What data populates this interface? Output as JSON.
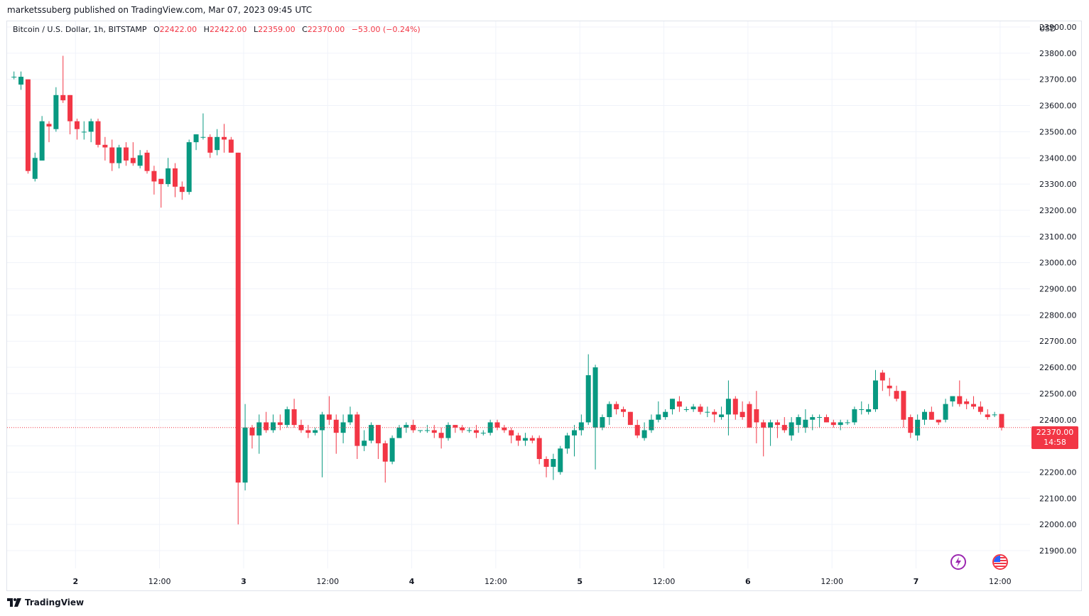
{
  "header": {
    "text": "marketssuberg published on TradingView.com, Mar 07, 2023 09:45 UTC"
  },
  "legend": {
    "symbol": "Bitcoin / U.S. Dollar, 1h, BITSTAMP",
    "o_label": "O",
    "o_value": "22422.00",
    "h_label": "H",
    "h_value": "22422.00",
    "l_label": "L",
    "l_value": "22359.00",
    "c_label": "C",
    "c_value": "22370.00",
    "change": "−53.00 (−0.24%)"
  },
  "price_tag": {
    "price": "22370.00",
    "countdown": "14:58"
  },
  "footer": {
    "brand": "TradingView"
  },
  "colors": {
    "up": "#089981",
    "down": "#f23645",
    "grid": "#f0f3fa",
    "axis_text": "#131722"
  },
  "icons": {
    "left": "lightning-icon",
    "right": "us-flag-icon"
  },
  "chart_data": {
    "type": "candlestick",
    "currency": "USD",
    "y_ticks": [
      21900,
      22000,
      22100,
      22200,
      22300,
      22400,
      22500,
      22600,
      22700,
      22800,
      22900,
      23000,
      23100,
      23200,
      23300,
      23400,
      23500,
      23600,
      23700,
      23800,
      23900
    ],
    "y_tick_labels": [
      "21900.00",
      "22000.00",
      "22100.00",
      "22200.00",
      "22300.00",
      "22400.00",
      "22500.00",
      "22600.00",
      "22700.00",
      "22800.00",
      "22900.00",
      "23000.00",
      "23100.00",
      "23200.00",
      "23300.00",
      "23400.00",
      "23500.00",
      "23600.00",
      "23700.00",
      "23800.00",
      "23900.00"
    ],
    "x_ticks": [
      {
        "label": "2",
        "bar": 10
      },
      {
        "label": "12:00",
        "bar": 22
      },
      {
        "label": "3",
        "bar": 34
      },
      {
        "label": "12:00",
        "bar": 46
      },
      {
        "label": "4",
        "bar": 58
      },
      {
        "label": "12:00",
        "bar": 70
      },
      {
        "label": "5",
        "bar": 82
      },
      {
        "label": "12:00",
        "bar": 94
      },
      {
        "label": "6",
        "bar": 106
      },
      {
        "label": "12:00",
        "bar": 118
      },
      {
        "label": "7",
        "bar": 130
      },
      {
        "label": "12:00",
        "bar": 142
      }
    ],
    "ylim": [
      21800,
      24000
    ],
    "last_price": 22370,
    "candles": [
      [
        23710,
        23730,
        23700,
        23710
      ],
      [
        23680,
        23730,
        23660,
        23710
      ],
      [
        23700,
        23700,
        23340,
        23350
      ],
      [
        23320,
        23420,
        23310,
        23400
      ],
      [
        23390,
        23560,
        23390,
        23540
      ],
      [
        23530,
        23540,
        23460,
        23520
      ],
      [
        23510,
        23670,
        23500,
        23640
      ],
      [
        23640,
        23790,
        23610,
        23620
      ],
      [
        23640,
        23640,
        23490,
        23540
      ],
      [
        23540,
        23550,
        23470,
        23510
      ],
      [
        23500,
        23540,
        23470,
        23500
      ],
      [
        23500,
        23550,
        23460,
        23540
      ],
      [
        23540,
        23550,
        23440,
        23450
      ],
      [
        23450,
        23480,
        23390,
        23440
      ],
      [
        23440,
        23470,
        23350,
        23380
      ],
      [
        23380,
        23450,
        23360,
        23440
      ],
      [
        23440,
        23460,
        23370,
        23390
      ],
      [
        23400,
        23460,
        23370,
        23380
      ],
      [
        23370,
        23430,
        23360,
        23410
      ],
      [
        23420,
        23430,
        23340,
        23350
      ],
      [
        23350,
        23370,
        23260,
        23310
      ],
      [
        23320,
        23320,
        23210,
        23300
      ],
      [
        23300,
        23400,
        23290,
        23360
      ],
      [
        23360,
        23380,
        23250,
        23290
      ],
      [
        23290,
        23310,
        23240,
        23270
      ],
      [
        23270,
        23470,
        23260,
        23460
      ],
      [
        23460,
        23490,
        23430,
        23490
      ],
      [
        23480,
        23570,
        23470,
        23480
      ],
      [
        23480,
        23490,
        23400,
        23420
      ],
      [
        23430,
        23510,
        23410,
        23480
      ],
      [
        23480,
        23530,
        23420,
        23470
      ],
      [
        23470,
        23480,
        23420,
        23420
      ],
      [
        23420,
        23420,
        22000,
        22160
      ],
      [
        22160,
        22460,
        22130,
        22370
      ],
      [
        22370,
        22380,
        22290,
        22340
      ],
      [
        22340,
        22420,
        22270,
        22390
      ],
      [
        22390,
        22430,
        22350,
        22360
      ],
      [
        22360,
        22420,
        22350,
        22390
      ],
      [
        22390,
        22420,
        22360,
        22380
      ],
      [
        22380,
        22450,
        22370,
        22440
      ],
      [
        22440,
        22480,
        22370,
        22380
      ],
      [
        22380,
        22400,
        22350,
        22360
      ],
      [
        22360,
        22380,
        22330,
        22350
      ],
      [
        22350,
        22370,
        22340,
        22360
      ],
      [
        22360,
        22430,
        22180,
        22420
      ],
      [
        22420,
        22490,
        22380,
        22400
      ],
      [
        22400,
        22420,
        22270,
        22350
      ],
      [
        22350,
        22420,
        22310,
        22390
      ],
      [
        22390,
        22450,
        22380,
        22420
      ],
      [
        22420,
        22430,
        22250,
        22300
      ],
      [
        22300,
        22360,
        22280,
        22320
      ],
      [
        22320,
        22390,
        22310,
        22380
      ],
      [
        22380,
        22380,
        22250,
        22310
      ],
      [
        22310,
        22320,
        22160,
        22240
      ],
      [
        22240,
        22340,
        22230,
        22330
      ],
      [
        22330,
        22380,
        22330,
        22370
      ],
      [
        22370,
        22390,
        22350,
        22380
      ],
      [
        22380,
        22400,
        22350,
        22360
      ],
      [
        22360,
        22360,
        22350,
        22360
      ],
      [
        22360,
        22380,
        22350,
        22360
      ],
      [
        22360,
        22380,
        22330,
        22350
      ],
      [
        22350,
        22370,
        22290,
        22330
      ],
      [
        22330,
        22390,
        22320,
        22380
      ],
      [
        22380,
        22380,
        22350,
        22370
      ],
      [
        22370,
        22380,
        22350,
        22360
      ],
      [
        22360,
        22370,
        22350,
        22360
      ],
      [
        22360,
        22380,
        22330,
        22350
      ],
      [
        22350,
        22360,
        22340,
        22350
      ],
      [
        22350,
        22400,
        22340,
        22390
      ],
      [
        22390,
        22400,
        22360,
        22370
      ],
      [
        22370,
        22380,
        22350,
        22360
      ],
      [
        22360,
        22370,
        22310,
        22340
      ],
      [
        22340,
        22350,
        22300,
        22320
      ],
      [
        22320,
        22350,
        22300,
        22330
      ],
      [
        22330,
        22340,
        22310,
        22320
      ],
      [
        22330,
        22340,
        22230,
        22250
      ],
      [
        22250,
        22260,
        22180,
        22220
      ],
      [
        22220,
        22270,
        22170,
        22250
      ],
      [
        22200,
        22300,
        22190,
        22290
      ],
      [
        22290,
        22350,
        22270,
        22340
      ],
      [
        22340,
        22380,
        22260,
        22360
      ],
      [
        22360,
        22420,
        22340,
        22390
      ],
      [
        22390,
        22650,
        22380,
        22570
      ],
      [
        22370,
        22610,
        22210,
        22600
      ],
      [
        22370,
        22420,
        22360,
        22410
      ],
      [
        22410,
        22470,
        22380,
        22460
      ],
      [
        22460,
        22470,
        22420,
        22440
      ],
      [
        22440,
        22450,
        22410,
        22430
      ],
      [
        22430,
        22430,
        22380,
        22380
      ],
      [
        22380,
        22400,
        22330,
        22340
      ],
      [
        22330,
        22390,
        22320,
        22360
      ],
      [
        22360,
        22420,
        22350,
        22400
      ],
      [
        22400,
        22470,
        22390,
        22420
      ],
      [
        22410,
        22440,
        22400,
        22430
      ],
      [
        22440,
        22480,
        22420,
        22480
      ],
      [
        22470,
        22490,
        22430,
        22450
      ],
      [
        22440,
        22450,
        22430,
        22440
      ],
      [
        22440,
        22460,
        22430,
        22450
      ],
      [
        22450,
        22460,
        22420,
        22430
      ],
      [
        22430,
        22450,
        22410,
        22430
      ],
      [
        22430,
        22440,
        22390,
        22420
      ],
      [
        22410,
        22450,
        22400,
        22420
      ],
      [
        22420,
        22550,
        22340,
        22480
      ],
      [
        22480,
        22490,
        22400,
        22420
      ],
      [
        22430,
        22470,
        22400,
        22410
      ],
      [
        22460,
        22470,
        22370,
        22370
      ],
      [
        22440,
        22510,
        22310,
        22390
      ],
      [
        22390,
        22400,
        22260,
        22370
      ],
      [
        22370,
        22400,
        22300,
        22390
      ],
      [
        22390,
        22400,
        22330,
        22380
      ],
      [
        22380,
        22410,
        22350,
        22360
      ],
      [
        22340,
        22410,
        22320,
        22390
      ],
      [
        22380,
        22420,
        22350,
        22410
      ],
      [
        22370,
        22440,
        22350,
        22400
      ],
      [
        22400,
        22420,
        22360,
        22410
      ],
      [
        22410,
        22420,
        22370,
        22410
      ],
      [
        22410,
        22420,
        22390,
        22390
      ],
      [
        22390,
        22400,
        22370,
        22380
      ],
      [
        22380,
        22400,
        22360,
        22390
      ],
      [
        22390,
        22400,
        22380,
        22390
      ],
      [
        22390,
        22450,
        22380,
        22440
      ],
      [
        22440,
        22470,
        22420,
        22440
      ],
      [
        22430,
        22460,
        22420,
        22440
      ],
      [
        22440,
        22590,
        22430,
        22550
      ],
      [
        22580,
        22590,
        22510,
        22550
      ],
      [
        22530,
        22560,
        22490,
        22520
      ],
      [
        22510,
        22530,
        22470,
        22480
      ],
      [
        22510,
        22510,
        22370,
        22400
      ],
      [
        22410,
        22420,
        22330,
        22350
      ],
      [
        22340,
        22420,
        22320,
        22400
      ],
      [
        22400,
        22440,
        22380,
        22430
      ],
      [
        22430,
        22450,
        22400,
        22400
      ],
      [
        22400,
        22400,
        22380,
        22390
      ],
      [
        22400,
        22480,
        22390,
        22460
      ],
      [
        22470,
        22490,
        22450,
        22490
      ],
      [
        22490,
        22550,
        22450,
        22460
      ],
      [
        22470,
        22480,
        22440,
        22460
      ],
      [
        22460,
        22490,
        22440,
        22450
      ],
      [
        22450,
        22470,
        22420,
        22430
      ],
      [
        22420,
        22440,
        22400,
        22410
      ],
      [
        22420,
        22430,
        22410,
        22420
      ],
      [
        22422,
        22422,
        22359,
        22370
      ]
    ]
  }
}
